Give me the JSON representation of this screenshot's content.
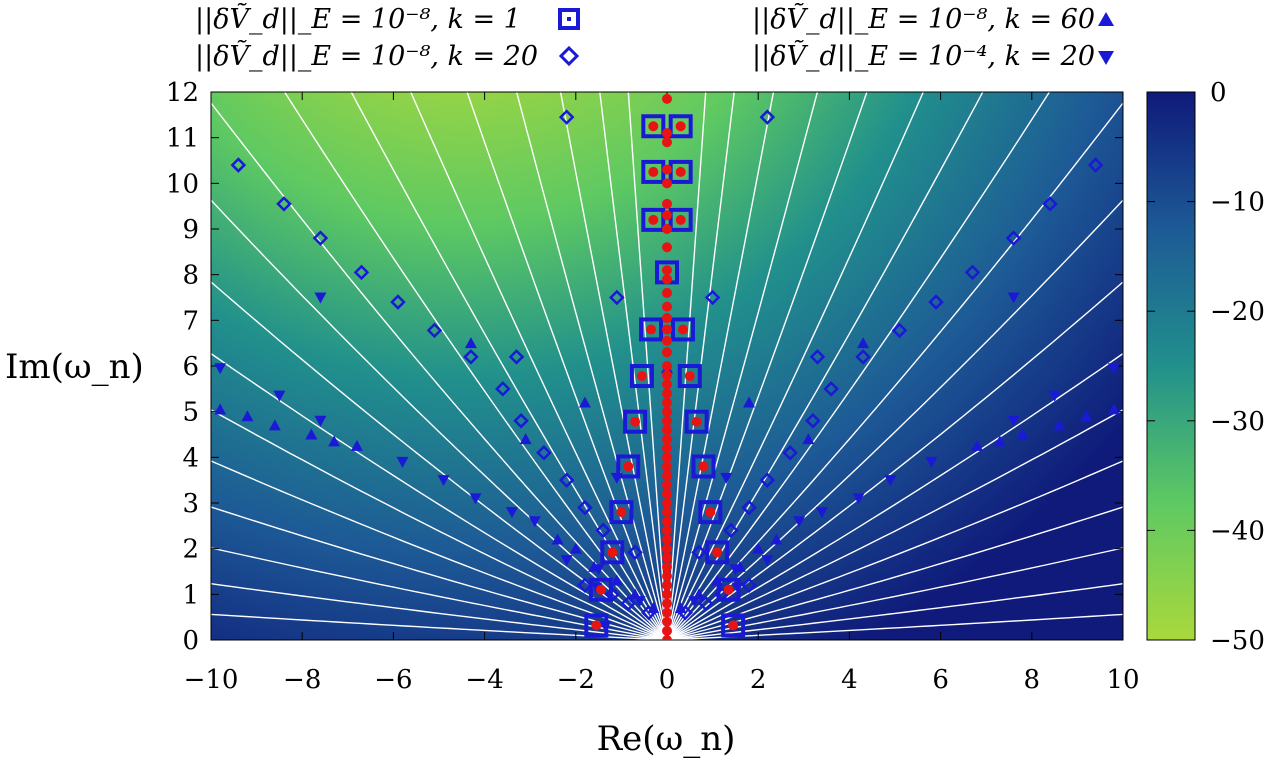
{
  "chart_data": {
    "type": "scatter",
    "xlabel": "Re(ω_n)",
    "ylabel": "Im(ω_n)",
    "xlim": [
      -10,
      10
    ],
    "ylim": [
      0,
      12
    ],
    "xticks": [
      "−10",
      "−8",
      "−6",
      "−4",
      "−2",
      "0",
      "2",
      "4",
      "6",
      "8",
      "10"
    ],
    "yticks": [
      "0",
      "1",
      "2",
      "3",
      "4",
      "5",
      "6",
      "7",
      "8",
      "9",
      "10",
      "11",
      "12"
    ],
    "colorbar": {
      "range": [
        -50,
        0
      ],
      "ticks": [
        "0",
        "−10",
        "−20",
        "−30",
        "−40",
        "−50"
      ],
      "colors": [
        "#0f1a7a",
        "#1d5a96",
        "#21908c",
        "#5ec962",
        "#aad83c"
      ]
    },
    "contour_color": "#ffffff",
    "legend_placement": "top",
    "legend": [
      {
        "text": "||δṼ_d||_E = 10⁻⁸, k = 1",
        "marker": "square"
      },
      {
        "text": "||δṼ_d||_E = 10⁻⁸, k = 20",
        "marker": "diamond"
      },
      {
        "text": "||δṼ_d||_E = 10⁻⁸, k = 60",
        "marker": "triangle-up"
      },
      {
        "text": "||δṼ_d||_E = 10⁻⁴, k = 20",
        "marker": "triangle-down"
      }
    ],
    "series": [
      {
        "marker": "square",
        "color": "#1a1ad6",
        "points": [
          [
            -1.55,
            0.32
          ],
          [
            1.45,
            0.32
          ],
          [
            -1.45,
            1.1
          ],
          [
            1.35,
            1.1
          ],
          [
            -1.2,
            1.92
          ],
          [
            1.1,
            1.92
          ],
          [
            -1.0,
            2.8
          ],
          [
            0.95,
            2.8
          ],
          [
            -0.85,
            3.8
          ],
          [
            0.8,
            3.8
          ],
          [
            -0.7,
            4.78
          ],
          [
            0.65,
            4.78
          ],
          [
            -0.55,
            5.78
          ],
          [
            0.5,
            5.78
          ],
          [
            -0.35,
            6.8
          ],
          [
            0.35,
            6.8
          ],
          [
            0.0,
            8.05
          ],
          [
            -0.3,
            9.2
          ],
          [
            0.3,
            9.2
          ],
          [
            -0.3,
            10.25
          ],
          [
            0.3,
            10.25
          ],
          [
            -0.3,
            11.25
          ],
          [
            0.3,
            11.25
          ]
        ]
      },
      {
        "marker": "diamond",
        "color": "#1a1ad6",
        "points": [
          [
            -9.4,
            10.4
          ],
          [
            9.4,
            10.4
          ],
          [
            -8.4,
            9.55
          ],
          [
            8.4,
            9.55
          ],
          [
            -7.6,
            8.8
          ],
          [
            7.6,
            8.8
          ],
          [
            -6.7,
            8.05
          ],
          [
            6.7,
            8.05
          ],
          [
            -5.9,
            7.4
          ],
          [
            5.9,
            7.4
          ],
          [
            -5.1,
            6.78
          ],
          [
            5.1,
            6.78
          ],
          [
            -4.3,
            6.2
          ],
          [
            4.3,
            6.2
          ],
          [
            -3.6,
            5.5
          ],
          [
            3.6,
            5.5
          ],
          [
            -3.2,
            4.8
          ],
          [
            3.2,
            4.8
          ],
          [
            -2.7,
            4.1
          ],
          [
            2.7,
            4.1
          ],
          [
            -2.2,
            3.5
          ],
          [
            2.2,
            3.5
          ],
          [
            -1.8,
            2.9
          ],
          [
            1.8,
            2.9
          ],
          [
            -1.4,
            2.4
          ],
          [
            1.4,
            2.4
          ],
          [
            -0.7,
            1.92
          ],
          [
            0.7,
            1.92
          ],
          [
            -2.2,
            11.45
          ],
          [
            2.2,
            11.45
          ],
          [
            -1.1,
            7.5
          ],
          [
            1.0,
            7.5
          ],
          [
            -3.3,
            6.2
          ],
          [
            3.3,
            6.2
          ],
          [
            -1.8,
            1.2
          ],
          [
            1.8,
            1.2
          ],
          [
            -1.2,
            1.0
          ],
          [
            1.2,
            1.0
          ],
          [
            -0.85,
            0.8
          ],
          [
            0.85,
            0.8
          ],
          [
            -0.4,
            0.6
          ],
          [
            0.4,
            0.6
          ]
        ]
      },
      {
        "marker": "triangle-up",
        "color": "#1a1ad6",
        "points": [
          [
            -9.8,
            5.05
          ],
          [
            9.8,
            5.05
          ],
          [
            -9.2,
            4.9
          ],
          [
            9.2,
            4.9
          ],
          [
            -8.6,
            4.7
          ],
          [
            8.6,
            4.7
          ],
          [
            -7.8,
            4.5
          ],
          [
            7.8,
            4.5
          ],
          [
            -7.3,
            4.35
          ],
          [
            7.3,
            4.35
          ],
          [
            -6.8,
            4.25
          ],
          [
            6.8,
            4.25
          ],
          [
            -3.1,
            4.4
          ],
          [
            3.1,
            4.4
          ],
          [
            -2.4,
            2.2
          ],
          [
            2.4,
            2.2
          ],
          [
            -2.0,
            2.0
          ],
          [
            2.0,
            2.0
          ],
          [
            -1.6,
            1.6
          ],
          [
            1.6,
            1.6
          ],
          [
            -1.1,
            1.3
          ],
          [
            1.1,
            1.3
          ],
          [
            -0.7,
            1.0
          ],
          [
            0.7,
            1.0
          ],
          [
            -0.3,
            0.7
          ],
          [
            0.3,
            0.7
          ],
          [
            -1.8,
            5.2
          ],
          [
            1.8,
            5.2
          ],
          [
            -4.3,
            6.5
          ],
          [
            4.3,
            6.5
          ],
          [
            0.0,
            5.95
          ]
        ]
      },
      {
        "marker": "triangle-down",
        "color": "#1a1ad6",
        "points": [
          [
            -9.8,
            5.95
          ],
          [
            9.8,
            5.95
          ],
          [
            -8.5,
            5.35
          ],
          [
            8.5,
            5.35
          ],
          [
            -7.6,
            4.8
          ],
          [
            7.6,
            4.8
          ],
          [
            -7.6,
            7.5
          ],
          [
            7.6,
            7.5
          ],
          [
            -5.8,
            3.9
          ],
          [
            5.8,
            3.9
          ],
          [
            -4.9,
            3.5
          ],
          [
            4.9,
            3.5
          ],
          [
            -4.2,
            3.1
          ],
          [
            4.2,
            3.1
          ],
          [
            -3.4,
            2.8
          ],
          [
            3.4,
            2.8
          ],
          [
            -2.9,
            2.6
          ],
          [
            2.9,
            2.6
          ],
          [
            -2.2,
            1.75
          ],
          [
            2.2,
            1.75
          ],
          [
            -1.5,
            1.55
          ],
          [
            1.5,
            1.55
          ],
          [
            -1.1,
            3.55
          ],
          [
            1.3,
            3.55
          ],
          [
            -1.35,
            0.3
          ],
          [
            1.45,
            0.3
          ],
          [
            -0.6,
            0.85
          ],
          [
            0.6,
            0.85
          ],
          [
            -1.55,
            1.15
          ],
          [
            1.55,
            1.15
          ]
        ]
      },
      {
        "marker": "dot",
        "color": "#e81414",
        "points": [
          [
            0,
            0.0
          ],
          [
            0,
            0.2
          ],
          [
            0,
            0.4
          ],
          [
            0,
            0.6
          ],
          [
            0,
            0.8
          ],
          [
            0,
            1.0
          ],
          [
            0,
            1.2
          ],
          [
            0,
            1.4
          ],
          [
            0,
            1.6
          ],
          [
            0,
            1.8
          ],
          [
            0,
            2.0
          ],
          [
            0,
            2.2
          ],
          [
            0,
            2.4
          ],
          [
            0,
            2.6
          ],
          [
            0,
            2.8
          ],
          [
            0,
            3.0
          ],
          [
            0,
            3.2
          ],
          [
            0,
            3.4
          ],
          [
            0,
            3.6
          ],
          [
            0,
            3.8
          ],
          [
            0,
            4.0
          ],
          [
            0,
            4.2
          ],
          [
            0,
            4.4
          ],
          [
            0,
            4.6
          ],
          [
            0,
            4.8
          ],
          [
            0,
            5.0
          ],
          [
            0,
            5.2
          ],
          [
            0,
            5.4
          ],
          [
            0,
            5.6
          ],
          [
            0,
            5.8
          ],
          [
            0,
            6.0
          ],
          [
            0,
            6.3
          ],
          [
            0,
            6.55
          ],
          [
            0,
            6.8
          ],
          [
            0,
            7.05
          ],
          [
            0,
            7.3
          ],
          [
            0,
            7.6
          ],
          [
            0,
            7.9
          ],
          [
            0,
            8.1
          ],
          [
            0,
            8.6
          ],
          [
            0,
            9.0
          ],
          [
            0,
            9.3
          ],
          [
            0,
            9.55
          ],
          [
            0,
            10.0
          ],
          [
            0,
            10.3
          ],
          [
            0,
            10.9
          ],
          [
            0,
            11.1
          ],
          [
            0,
            11.85
          ],
          [
            -1.55,
            0.32
          ],
          [
            1.45,
            0.32
          ],
          [
            -1.45,
            1.1
          ],
          [
            1.35,
            1.1
          ],
          [
            -1.2,
            1.92
          ],
          [
            1.1,
            1.92
          ],
          [
            -1.0,
            2.8
          ],
          [
            0.95,
            2.8
          ],
          [
            -0.85,
            3.8
          ],
          [
            0.8,
            3.8
          ],
          [
            -0.7,
            4.78
          ],
          [
            0.65,
            4.78
          ],
          [
            -0.55,
            5.78
          ],
          [
            0.5,
            5.78
          ],
          [
            -0.35,
            6.8
          ],
          [
            0.35,
            6.8
          ],
          [
            -0.3,
            9.2
          ],
          [
            0.3,
            9.2
          ],
          [
            -0.3,
            10.25
          ],
          [
            0.3,
            10.25
          ],
          [
            -0.3,
            11.25
          ],
          [
            0.3,
            11.25
          ]
        ]
      }
    ]
  }
}
